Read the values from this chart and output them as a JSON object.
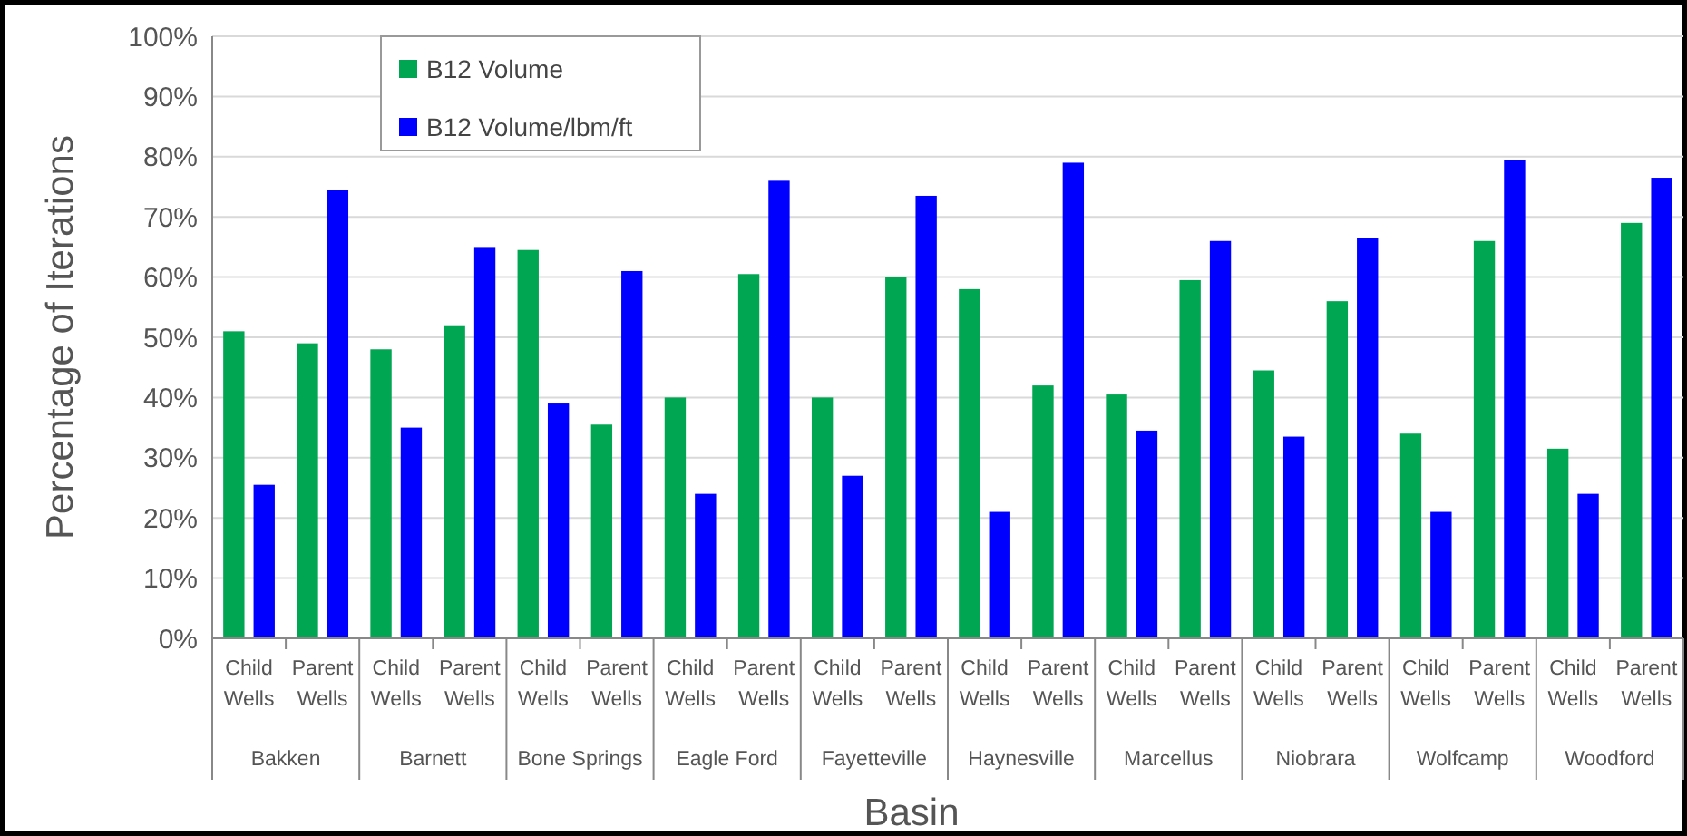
{
  "chart_data": {
    "type": "bar",
    "xlabel": "Basin",
    "ylabel": "Percentage of Iterations",
    "categories": [
      "Child Wells",
      "Parent Wells",
      "Child Wells",
      "Parent Wells",
      "Child Wells",
      "Parent Wells",
      "Child Wells",
      "Parent Wells",
      "Child Wells",
      "Parent Wells",
      "Child Wells",
      "Parent Wells",
      "Child Wells",
      "Parent Wells",
      "Child Wells",
      "Parent Wells",
      "Child Wells",
      "Parent Wells",
      "Child Wells",
      "Parent Wells"
    ],
    "annotations": [
      "Bakken",
      "Barnett",
      "Bone Springs",
      "Eagle Ford",
      "Fayetteville",
      "Haynesville",
      "Marcellus",
      "Niobrara",
      "Wolfcamp",
      "Woodford"
    ],
    "series": [
      {
        "name": "B12 Volume",
        "color": "#00a651",
        "values": [
          51,
          49,
          48,
          52,
          64.5,
          35.5,
          40,
          60.5,
          40,
          60,
          58,
          42,
          40.5,
          59.5,
          44.5,
          56,
          34,
          66,
          31.5,
          69
        ]
      },
      {
        "name": "B12 Volume/lbm/ft",
        "color": "#0000ff",
        "values": [
          25.5,
          74.5,
          35,
          65,
          39,
          61,
          24,
          76,
          27,
          73.5,
          21,
          79,
          34.5,
          66,
          33.5,
          66.5,
          21,
          79.5,
          24,
          76.5
        ]
      }
    ],
    "ylim": [
      0,
      100
    ],
    "yticks": [
      {
        "value": 0,
        "label": "0%"
      },
      {
        "value": 10,
        "label": "10%"
      },
      {
        "value": 20,
        "label": "20%"
      },
      {
        "value": 30,
        "label": "30%"
      },
      {
        "value": 40,
        "label": "40%"
      },
      {
        "value": 50,
        "label": "50%"
      },
      {
        "value": 60,
        "label": "60%"
      },
      {
        "value": 70,
        "label": "70%"
      },
      {
        "value": 80,
        "label": "80%"
      },
      {
        "value": 90,
        "label": "90%"
      },
      {
        "value": 100,
        "label": "100%"
      }
    ],
    "grid": "y",
    "legend": "top left"
  }
}
